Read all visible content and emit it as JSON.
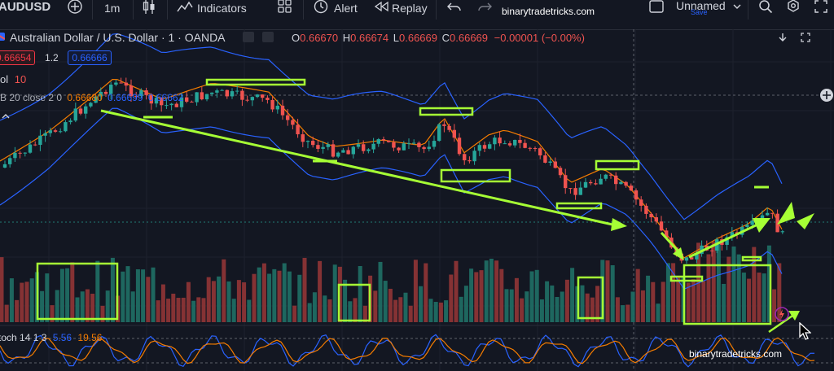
{
  "toolbar": {
    "symbol": "AUDUSD",
    "interval": "1m",
    "indicators_label": "Indicators",
    "alert_label": "Alert",
    "replay_label": "Replay",
    "layout_name": "Unnamed",
    "save_label": "Save"
  },
  "watermark": "binarytradetricks.com",
  "legend": {
    "title": "Australian Dollar / U.S. Dollar · 1 · OANDA",
    "o_label": "O",
    "o_value": "0.66670",
    "h_label": "H",
    "h_value": "0.66674",
    "l_label": "L",
    "l_value": "0.66669",
    "c_label": "C",
    "c_value": "0.66669",
    "change": "−0.00001 (−0.00%)",
    "bid": "0.66654",
    "spread": "1.2",
    "ask": "0.66666",
    "vol_label": "ol",
    "vol_value": "10",
    "bb_label": "B 20 close 2 0",
    "bb_basis": "0.66680",
    "bb_upper": "0.66699",
    "bb_lower": "0.66662",
    "stoch_label": "toch 14 1 3",
    "stoch_k": "5.56",
    "stoch_d": "19.56"
  },
  "colors": {
    "background": "#131722",
    "bull": "#26a69a",
    "bear": "#ef5350",
    "band": "#2962ff",
    "basis": "#f57c00",
    "annotation": "#a6ff35",
    "bid": "#f23645",
    "ask": "#2962ff"
  },
  "chart_data": {
    "type": "candlestick",
    "ohlc_last": {
      "open": 0.6667,
      "high": 0.66674,
      "low": 0.66669,
      "close": 0.66669
    }
  }
}
